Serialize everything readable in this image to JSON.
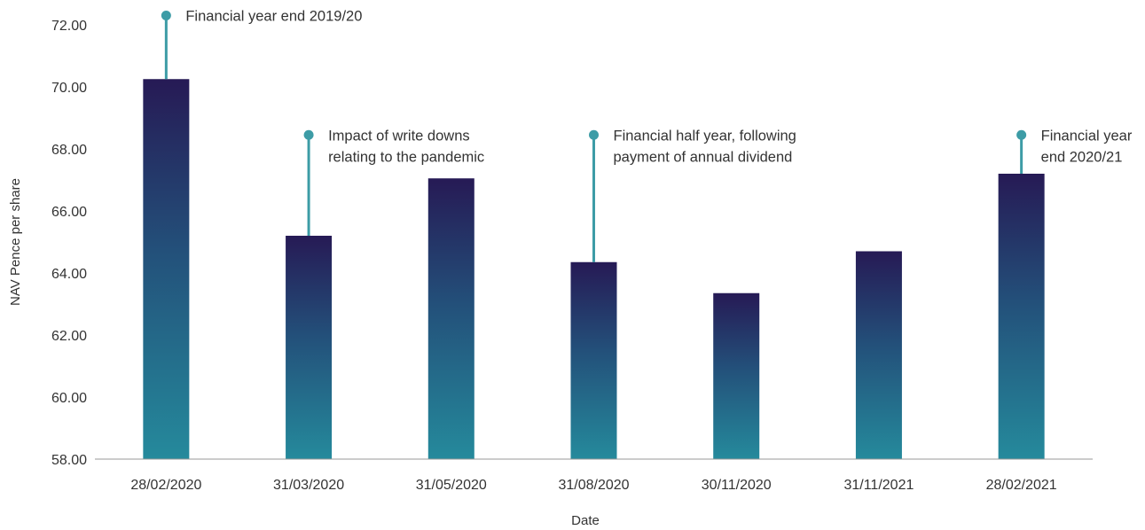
{
  "chart_data": {
    "type": "bar",
    "xlabel": "Date",
    "ylabel": "NAV Pence per share",
    "ylim": [
      58,
      72
    ],
    "yticks": [
      "58.00",
      "60.00",
      "62.00",
      "64.00",
      "66.00",
      "68.00",
      "70.00",
      "72.00"
    ],
    "categories": [
      "28/02/2020",
      "31/03/2020",
      "31/05/2020",
      "31/08/2020",
      "30/11/2020",
      "31/11/2021",
      "28/02/2021"
    ],
    "values": [
      70.25,
      65.2,
      67.05,
      64.35,
      63.35,
      64.7,
      67.2
    ],
    "bar_gradient": {
      "top": "#261a55",
      "mid": "#23507a",
      "bottom": "#258a9c"
    },
    "annotation_color": "#3d9ca6",
    "annotations": [
      {
        "category_index": 0,
        "lines": [
          "Financial year end 2019/20"
        ],
        "marker_y": 72.3
      },
      {
        "category_index": 1,
        "lines": [
          "Impact of write downs",
          "relating to the pandemic"
        ],
        "marker_y": 68.45
      },
      {
        "category_index": 3,
        "lines": [
          "Financial half year, following",
          "payment of annual dividend"
        ],
        "marker_y": 68.45
      },
      {
        "category_index": 6,
        "lines": [
          "Financial year",
          "end 2020/21"
        ],
        "marker_y": 68.45
      }
    ]
  }
}
